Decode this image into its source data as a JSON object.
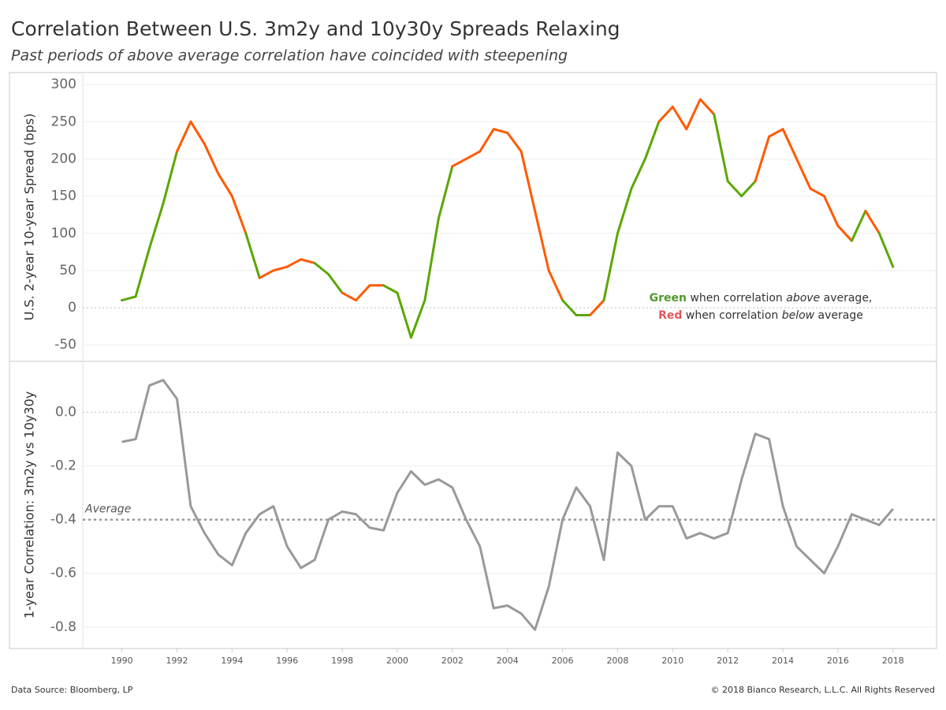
{
  "header": {
    "title": "Correlation Between U.S. 3m2y and 10y30y Spreads Relaxing",
    "subtitle": "Past periods of above average correlation have coincided with steepening"
  },
  "chart_data": [
    {
      "type": "line",
      "ylabel": "U.S. 2-year 10-year Spread (bps)",
      "x": [
        1990,
        1990.5,
        1991,
        1991.5,
        1992,
        1992.5,
        1993,
        1993.5,
        1994,
        1994.5,
        1995,
        1995.5,
        1996,
        1996.5,
        1997,
        1997.5,
        1998,
        1998.5,
        1999,
        1999.5,
        2000,
        2000.5,
        2001,
        2001.5,
        2002,
        2002.5,
        2003,
        2003.5,
        2004,
        2004.5,
        2005,
        2005.5,
        2006,
        2006.5,
        2007,
        2007.5,
        2008,
        2008.5,
        2009,
        2009.5,
        2010,
        2010.5,
        2011,
        2011.5,
        2012,
        2012.5,
        2013,
        2013.5,
        2014,
        2014.5,
        2015,
        2015.5,
        2016,
        2016.5,
        2017,
        2017.5,
        2018
      ],
      "values": [
        10,
        15,
        80,
        140,
        210,
        250,
        220,
        180,
        150,
        100,
        40,
        50,
        55,
        65,
        60,
        45,
        20,
        10,
        30,
        30,
        20,
        -40,
        10,
        120,
        190,
        200,
        210,
        240,
        235,
        210,
        130,
        50,
        10,
        -10,
        -10,
        10,
        100,
        160,
        200,
        250,
        270,
        240,
        280,
        260,
        170,
        150,
        170,
        230,
        240,
        200,
        160,
        150,
        110,
        90,
        130,
        100,
        55
      ],
      "point_colors": [
        "above",
        "above",
        "above",
        "above",
        "above",
        "below",
        "below",
        "below",
        "below",
        "below",
        "above",
        "below",
        "below",
        "below",
        "below",
        "above",
        "above",
        "below",
        "below",
        "below",
        "above",
        "above",
        "above",
        "above",
        "above",
        "below",
        "below",
        "below",
        "below",
        "below",
        "below",
        "below",
        "below",
        "above",
        "above",
        "below",
        "above",
        "above",
        "above",
        "above",
        "below",
        "below",
        "below",
        "below",
        "above",
        "above",
        "above",
        "below",
        "below",
        "below",
        "below",
        "below",
        "below",
        "below",
        "above",
        "below",
        "above"
      ],
      "colors": {
        "above": "#5aa700",
        "below": "#ff5a00"
      },
      "xlim": [
        1988.58,
        2019.58
      ],
      "ylim": [
        -72,
        316
      ],
      "yticks": [
        -50,
        0,
        50,
        100,
        150,
        200,
        250,
        300
      ],
      "grid": true,
      "annotation": [
        [
          "Green",
          " when correlation ",
          "above",
          " average,"
        ],
        [
          "Red",
          " when correlation ",
          "below",
          " average"
        ]
      ],
      "annotation_colors": [
        "#4e9a2a",
        "#e15759"
      ]
    },
    {
      "type": "line",
      "ylabel": "1-year Correlation: 3m2y vs 10y30y",
      "color": "#999999",
      "x": [
        1990,
        1990.5,
        1991,
        1991.5,
        1992,
        1992.5,
        1993,
        1993.5,
        1994,
        1994.5,
        1995,
        1995.5,
        1996,
        1996.5,
        1997,
        1997.5,
        1998,
        1998.5,
        1999,
        1999.5,
        2000,
        2000.5,
        2001,
        2001.5,
        2002,
        2002.5,
        2003,
        2003.5,
        2004,
        2004.5,
        2005,
        2005.5,
        2006,
        2006.5,
        2007,
        2007.5,
        2008,
        2008.5,
        2009,
        2009.5,
        2010,
        2010.5,
        2011,
        2011.5,
        2012,
        2012.5,
        2013,
        2013.5,
        2014,
        2014.5,
        2015,
        2015.5,
        2016,
        2016.5,
        2017,
        2017.5,
        2018
      ],
      "values": [
        -0.11,
        -0.1,
        0.1,
        0.12,
        0.05,
        -0.35,
        -0.45,
        -0.53,
        -0.57,
        -0.45,
        -0.38,
        -0.35,
        -0.5,
        -0.58,
        -0.55,
        -0.4,
        -0.37,
        -0.38,
        -0.43,
        -0.44,
        -0.3,
        -0.22,
        -0.27,
        -0.25,
        -0.28,
        -0.4,
        -0.5,
        -0.73,
        -0.72,
        -0.75,
        -0.81,
        -0.65,
        -0.4,
        -0.28,
        -0.35,
        -0.55,
        -0.15,
        -0.2,
        -0.4,
        -0.35,
        -0.35,
        -0.47,
        -0.45,
        -0.47,
        -0.45,
        -0.25,
        -0.08,
        -0.1,
        -0.35,
        -0.5,
        -0.55,
        -0.6,
        -0.5,
        -0.38,
        -0.4,
        -0.42,
        -0.36
      ],
      "xlim": [
        1988.58,
        2019.58
      ],
      "ylim": [
        -0.88,
        0.19
      ],
      "yticks": [
        {
          "value": 0,
          "label": "0.0"
        },
        -0.2,
        -0.4,
        -0.6,
        -0.8
      ],
      "grid": true,
      "xticks": [
        1990,
        1992,
        1994,
        1996,
        1998,
        2000,
        2002,
        2004,
        2006,
        2008,
        2010,
        2012,
        2014,
        2016,
        2018
      ],
      "average": {
        "value": -0.4,
        "label": "Average"
      }
    }
  ],
  "footer": {
    "source": "Data Source: Bloomberg, LP",
    "copyright": "© 2018 Bianco Research, L.L.C. All Rights Reserved"
  }
}
